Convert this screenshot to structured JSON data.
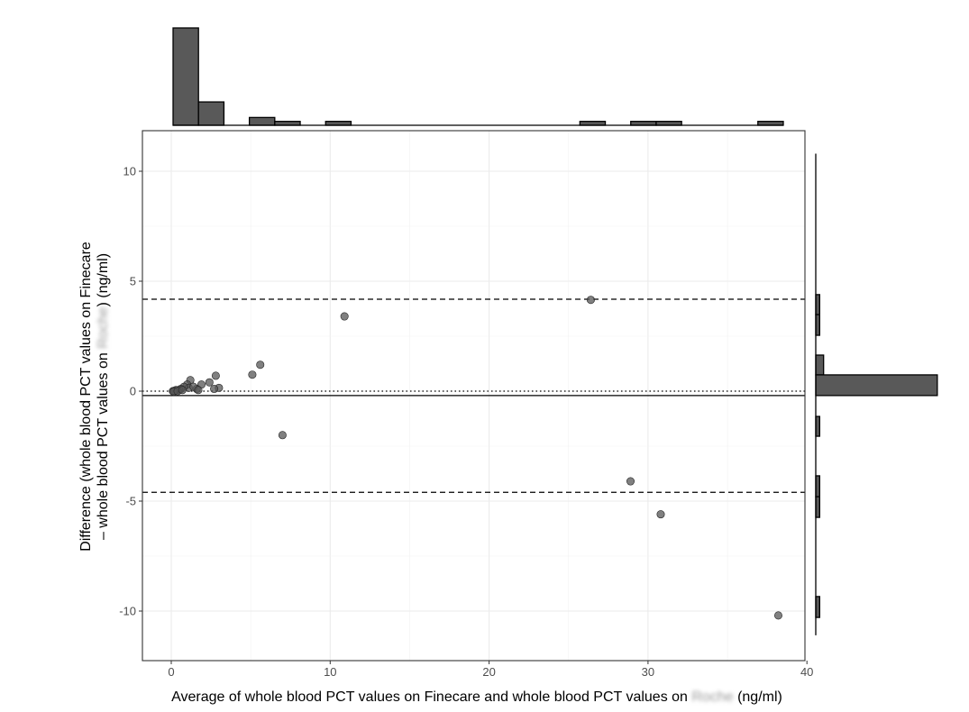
{
  "chart_data": {
    "type": "scatter",
    "subtype": "bland-altman with marginal histograms",
    "xlabel_parts": [
      "Average of whole blood PCT values on Finecare and whole blood PCT values on ",
      "Roche",
      " (ng/ml)"
    ],
    "ylabel_line1": "Difference (whole blood PCT values on Finecare",
    "ylabel_line2_parts": [
      "– whole blood PCT values on ",
      "Roche",
      ") (ng/ml)"
    ],
    "xlim": [
      -1.8,
      40.3
    ],
    "ylim": [
      -12.2,
      11.8
    ],
    "xticks": [
      0,
      10,
      20,
      30,
      40
    ],
    "yticks": [
      -10,
      -5,
      0,
      5,
      10
    ],
    "grid": true,
    "point_color": "#555555",
    "points": [
      [
        26.4,
        4.15
      ],
      [
        10.9,
        3.4
      ],
      [
        5.6,
        1.2
      ],
      [
        5.1,
        0.75
      ],
      [
        2.8,
        0.7
      ],
      [
        3.0,
        0.15
      ],
      [
        2.7,
        0.1
      ],
      [
        2.4,
        0.4
      ],
      [
        1.9,
        0.3
      ],
      [
        1.6,
        0.1
      ],
      [
        1.2,
        0.5
      ],
      [
        1.0,
        0.3
      ],
      [
        1.1,
        0.15
      ],
      [
        0.8,
        0.2
      ],
      [
        0.6,
        0.1
      ],
      [
        0.5,
        0.05
      ],
      [
        0.3,
        0.05
      ],
      [
        0.1,
        0.0
      ],
      [
        0.2,
        0.02
      ],
      [
        0.15,
        -0.02
      ],
      [
        0.4,
        0.0
      ],
      [
        0.7,
        0.05
      ],
      [
        1.4,
        0.2
      ],
      [
        1.7,
        0.05
      ],
      [
        7.0,
        -2.0
      ],
      [
        28.9,
        -4.1
      ],
      [
        30.8,
        -5.6
      ],
      [
        38.2,
        -10.2
      ]
    ],
    "lines": {
      "bias": -0.2,
      "upper_loa": 4.18,
      "lower_loa": -4.6,
      "zero": 0
    },
    "top_histogram": {
      "bins": [
        [
          0,
          1.6,
          25
        ],
        [
          1.6,
          3.2,
          6
        ],
        [
          4.8,
          6.4,
          2
        ],
        [
          6.4,
          8.0,
          1
        ],
        [
          9.6,
          11.2,
          1
        ],
        [
          25.6,
          27.2,
          1
        ],
        [
          28.8,
          30.4,
          1
        ],
        [
          30.4,
          32.0,
          1
        ],
        [
          36.8,
          38.4,
          1
        ]
      ],
      "range": [
        0,
        38.4
      ]
    },
    "right_histogram": {
      "bins": [
        [
          3.48,
          4.39,
          1
        ],
        [
          2.54,
          3.48,
          1
        ],
        [
          0.74,
          1.64,
          2
        ],
        [
          -0.2,
          0.74,
          31
        ],
        [
          -2.05,
          -1.15,
          1
        ],
        [
          -4.8,
          -3.85,
          1
        ],
        [
          -5.74,
          -4.8,
          1
        ],
        [
          -10.29,
          -9.34,
          1
        ]
      ],
      "range": [
        -11.1,
        10.8
      ]
    },
    "bar_color": "#595959"
  }
}
